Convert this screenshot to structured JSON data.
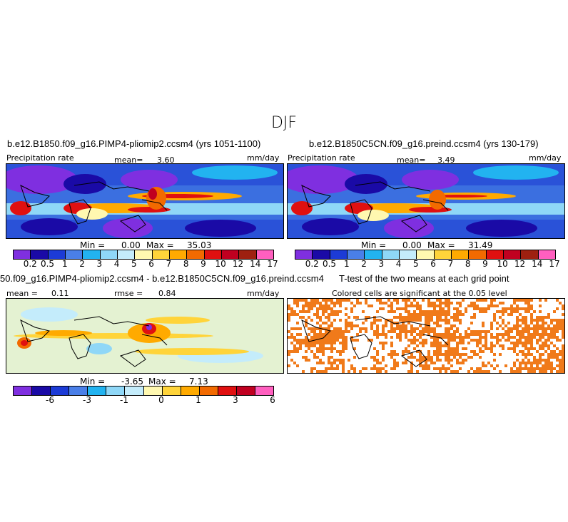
{
  "chart_data": [
    {
      "type": "heatmap",
      "panel": "top-left",
      "title": "b.e12.B1850.f09_g16.PIMP4-pliomip2.ccsm4 (yrs 1051-1100)",
      "left_label": "Precipitation rate",
      "center_label": "mean=",
      "center_value": "3.60",
      "right_label": "mm/day",
      "min_label": "Min =",
      "min_value": "0.00",
      "max_label": "Max =",
      "max_value": "35.03",
      "colorbar_labels": [
        "0.2",
        "0.5",
        "1",
        "2",
        "3",
        "4",
        "5",
        "6",
        "7",
        "8",
        "9",
        "10",
        "12",
        "14",
        "17"
      ],
      "colorbar_colors": [
        "#7f2fe0",
        "#1a0aa6",
        "#1c3bd6",
        "#4a7fe8",
        "#22b3f0",
        "#8fd7f7",
        "#c4ecfb",
        "#fff8b0",
        "#ffd43a",
        "#ffaa00",
        "#f26a00",
        "#e01010",
        "#c00020",
        "#9e2010",
        "#ff5fbf"
      ]
    },
    {
      "type": "heatmap",
      "panel": "top-right",
      "title": "b.e12.B1850C5CN.f09_g16.preind.ccsm4 (yrs 130-179)",
      "left_label": "Precipitation rate",
      "center_label": "mean=",
      "center_value": "3.49",
      "right_label": "mm/day",
      "min_label": "Min =",
      "min_value": "0.00",
      "max_label": "Max =",
      "max_value": "31.49",
      "colorbar_labels": [
        "0.2",
        "0.5",
        "1",
        "2",
        "3",
        "4",
        "5",
        "6",
        "7",
        "8",
        "9",
        "10",
        "12",
        "14",
        "17"
      ],
      "colorbar_colors": [
        "#7f2fe0",
        "#1a0aa6",
        "#1c3bd6",
        "#4a7fe8",
        "#22b3f0",
        "#8fd7f7",
        "#c4ecfb",
        "#fff8b0",
        "#ffd43a",
        "#ffaa00",
        "#f26a00",
        "#e01010",
        "#c00020",
        "#9e2010",
        "#ff5fbf"
      ]
    },
    {
      "type": "heatmap",
      "panel": "bottom-left",
      "title": "50.f09_g16.PIMP4-pliomip2.ccsm4 - b.e12.B1850C5CN.f09_g16.preind.ccsm4",
      "left_label": "mean =",
      "left_value": "0.11",
      "center_label": "rmse =",
      "center_value": "0.84",
      "right_label": "mm/day",
      "min_label": "Min =",
      "min_value": "-3.65",
      "max_label": "Max =",
      "max_value": "7.13",
      "colorbar_labels": [
        "-6",
        "-3",
        "-1",
        "0",
        "1",
        "3",
        "6"
      ],
      "colorbar_colors": [
        "#7f2fe0",
        "#1a0aa6",
        "#1c3bd6",
        "#4a7fe8",
        "#22b3f0",
        "#8fd7f7",
        "#c4ecfb",
        "#fff8b0",
        "#ffd43a",
        "#ffaa00",
        "#f26a00",
        "#e01010",
        "#c00020",
        "#ff5fbf"
      ]
    },
    {
      "type": "heatmap",
      "panel": "bottom-right",
      "title": "T-test of the two means at each grid point",
      "subtitle": "Colored cells are significant at the 0.05 level",
      "significance_color": "#f07a1a"
    }
  ],
  "figure": {
    "title": "DJF"
  }
}
